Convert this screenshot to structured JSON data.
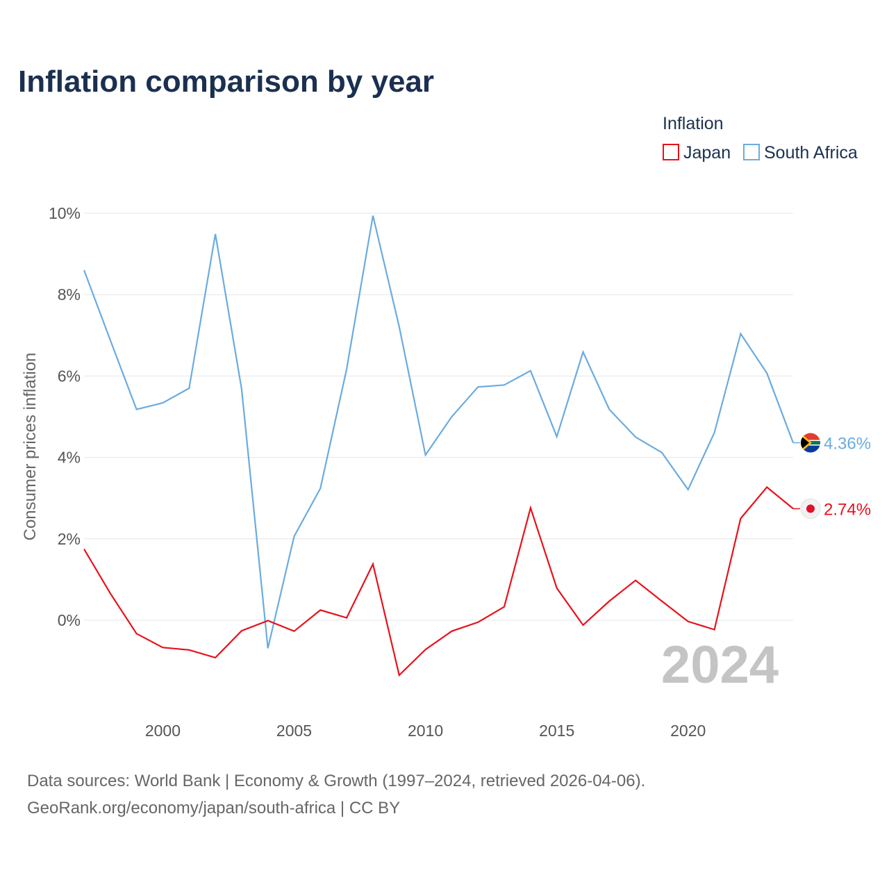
{
  "chart_data": {
    "type": "line",
    "title": "Inflation comparison by year",
    "legend_title": "Inflation",
    "ylabel": "Consumer prices inflation",
    "xlabel": "",
    "ylim": [
      -2.2,
      10
    ],
    "xlim": [
      1997,
      2024
    ],
    "yticks": [
      0,
      2,
      4,
      6,
      8,
      10
    ],
    "ytick_labels": [
      "0%",
      "2%",
      "4%",
      "6%",
      "8%",
      "10%"
    ],
    "xticks": [
      2000,
      2005,
      2010,
      2015,
      2020
    ],
    "xtick_labels": [
      "2000",
      "2005",
      "2010",
      "2015",
      "2020"
    ],
    "current_year": "2024",
    "x": [
      1997,
      1998,
      1999,
      2000,
      2001,
      2002,
      2003,
      2004,
      2005,
      2006,
      2007,
      2008,
      2009,
      2010,
      2011,
      2012,
      2013,
      2014,
      2015,
      2016,
      2017,
      2018,
      2019,
      2020,
      2021,
      2022,
      2023,
      2024
    ],
    "series": [
      {
        "name": "Japan",
        "color": "#e8111a",
        "end_label": "2.74%",
        "flag_icon": "japan-flag-icon",
        "values": [
          1.75,
          0.66,
          -0.33,
          -0.67,
          -0.73,
          -0.92,
          -0.26,
          -0.01,
          -0.27,
          0.25,
          0.06,
          1.38,
          -1.35,
          -0.72,
          -0.27,
          -0.05,
          0.33,
          2.76,
          0.79,
          -0.12,
          0.47,
          0.98,
          0.47,
          -0.03,
          -0.23,
          2.5,
          3.27,
          2.74
        ]
      },
      {
        "name": "South Africa",
        "color": "#6aabe0",
        "end_label": "4.36%",
        "flag_icon": "south-africa-flag-icon",
        "values": [
          8.6,
          6.88,
          5.18,
          5.34,
          5.7,
          9.49,
          5.68,
          -0.69,
          2.06,
          3.24,
          6.17,
          9.94,
          7.21,
          4.06,
          5.0,
          5.73,
          5.78,
          6.13,
          4.51,
          6.59,
          5.18,
          4.5,
          4.12,
          3.21,
          4.61,
          7.04,
          6.07,
          4.36
        ]
      }
    ]
  },
  "footer": {
    "source_line": "Data sources: World Bank | Economy & Growth (1997–2024, retrieved 2026-04-06).",
    "url_line": "GeoRank.org/economy/japan/south-africa | CC BY"
  }
}
